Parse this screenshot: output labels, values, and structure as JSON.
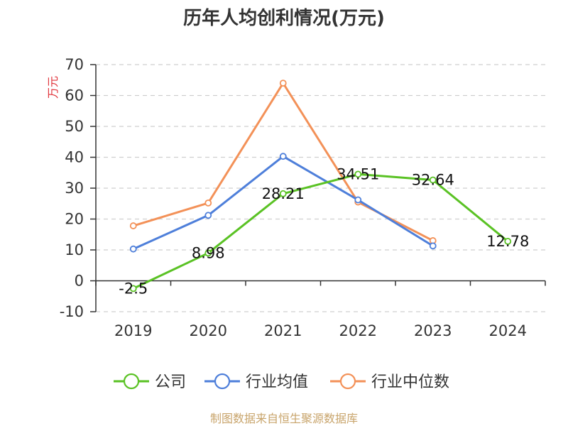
{
  "chart_data": {
    "type": "line",
    "title": "历年人均创利情况(万元)",
    "ylabel": "万元",
    "xlabel": "",
    "categories": [
      "2019",
      "2020",
      "2021",
      "2022",
      "2023",
      "2024"
    ],
    "ylim": [
      -10,
      70
    ],
    "yticks": [
      -10,
      0,
      10,
      20,
      30,
      40,
      50,
      60,
      70
    ],
    "grid": true,
    "legend_position": "bottom",
    "series": [
      {
        "name": "公司",
        "color": "#5ac224",
        "values": [
          -2.5,
          8.98,
          28.21,
          34.51,
          32.64,
          12.78
        ],
        "data_labels": [
          "-2.5",
          "8.98",
          "28.21",
          "34.51",
          "32.64",
          "12.78"
        ]
      },
      {
        "name": "行业均值",
        "color": "#4e7fda",
        "values": [
          10.3,
          21.2,
          40.3,
          26.2,
          11.3,
          null
        ]
      },
      {
        "name": "行业中位数",
        "color": "#f39158",
        "values": [
          17.8,
          25.2,
          64.0,
          25.5,
          13.0,
          null
        ]
      }
    ]
  },
  "source": "制图数据来自恒生聚源数据库"
}
